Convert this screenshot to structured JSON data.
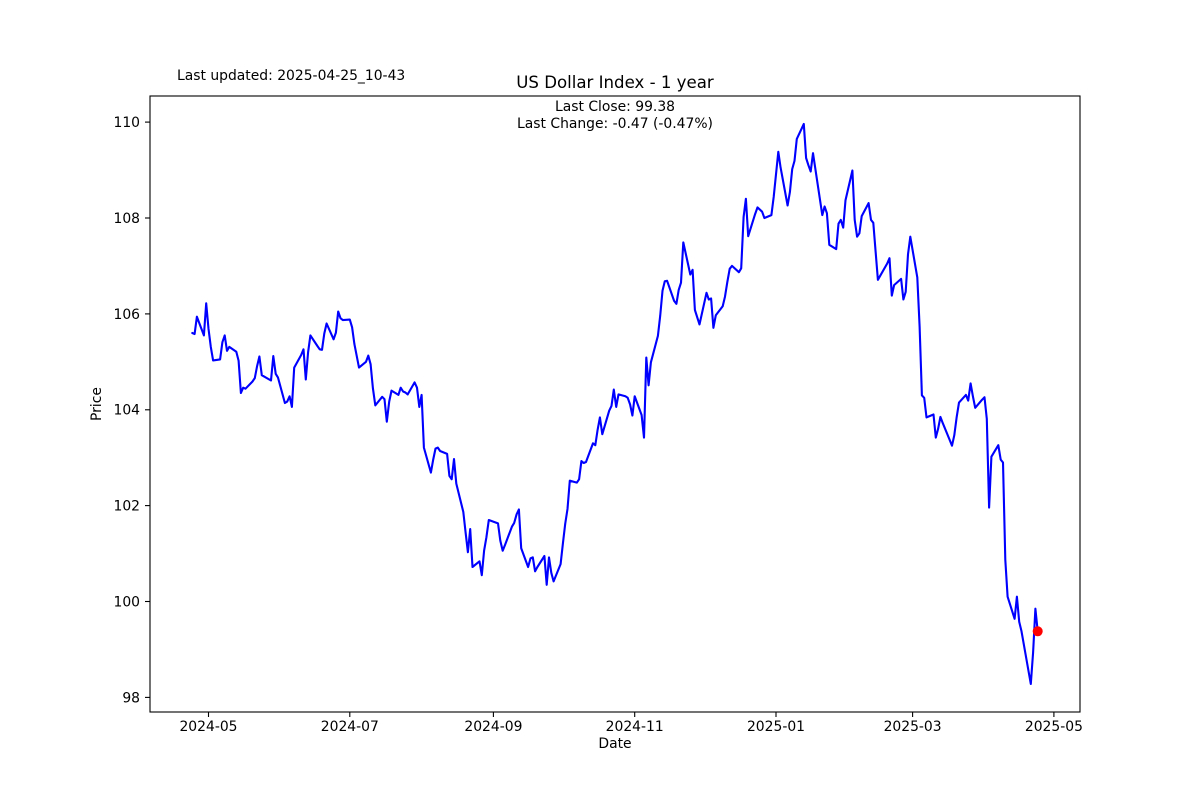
{
  "figure": {
    "last_updated_label": "Last updated: 2025-04-25_10-43",
    "background_color": "#ffffff",
    "text_color": "#000000"
  },
  "chart_data": {
    "type": "line",
    "title": "US Dollar Index - 1 year",
    "annotation": {
      "line1": "Last Close: 99.38",
      "line2": "Last Change: -0.47 (-0.47%)"
    },
    "last_close": 99.38,
    "last_change": -0.47,
    "last_change_pct": "-0.47%",
    "xlabel": "Date",
    "ylabel": "Price",
    "grid": false,
    "legend": false,
    "line_color": "#0000ff",
    "marker_color": "#ff0000",
    "spine_color": "#000000",
    "ylim_ticks": [
      98,
      110
    ],
    "y_ticks": [
      98,
      100,
      102,
      104,
      106,
      108,
      110
    ],
    "x_ticks": [
      {
        "label": "2024-05",
        "date": "2024-05-01"
      },
      {
        "label": "2024-07",
        "date": "2024-07-01"
      },
      {
        "label": "2024-09",
        "date": "2024-09-01"
      },
      {
        "label": "2024-11",
        "date": "2024-11-01"
      },
      {
        "label": "2025-01",
        "date": "2025-01-01"
      },
      {
        "label": "2025-03",
        "date": "2025-03-01"
      },
      {
        "label": "2025-05",
        "date": "2025-05-01"
      }
    ],
    "series": [
      {
        "name": "US Dollar Index",
        "points": [
          [
            "2024-04-24",
            105.6
          ],
          [
            "2024-04-25",
            105.58
          ],
          [
            "2024-04-26",
            105.94
          ],
          [
            "2024-04-29",
            105.55
          ],
          [
            "2024-04-30",
            106.22
          ],
          [
            "2024-05-01",
            105.69
          ],
          [
            "2024-05-02",
            105.31
          ],
          [
            "2024-05-03",
            105.03
          ],
          [
            "2024-05-06",
            105.05
          ],
          [
            "2024-05-07",
            105.41
          ],
          [
            "2024-05-08",
            105.55
          ],
          [
            "2024-05-09",
            105.23
          ],
          [
            "2024-05-10",
            105.31
          ],
          [
            "2024-05-13",
            105.21
          ],
          [
            "2024-05-14",
            105.02
          ],
          [
            "2024-05-15",
            104.35
          ],
          [
            "2024-05-16",
            104.46
          ],
          [
            "2024-05-17",
            104.44
          ],
          [
            "2024-05-20",
            104.59
          ],
          [
            "2024-05-21",
            104.66
          ],
          [
            "2024-05-22",
            104.91
          ],
          [
            "2024-05-23",
            105.11
          ],
          [
            "2024-05-24",
            104.72
          ],
          [
            "2024-05-28",
            104.61
          ],
          [
            "2024-05-29",
            105.12
          ],
          [
            "2024-05-30",
            104.75
          ],
          [
            "2024-05-31",
            104.67
          ],
          [
            "2024-06-03",
            104.14
          ],
          [
            "2024-06-04",
            104.17
          ],
          [
            "2024-06-05",
            104.28
          ],
          [
            "2024-06-06",
            104.06
          ],
          [
            "2024-06-07",
            104.88
          ],
          [
            "2024-06-10",
            105.14
          ],
          [
            "2024-06-11",
            105.26
          ],
          [
            "2024-06-12",
            104.63
          ],
          [
            "2024-06-13",
            105.2
          ],
          [
            "2024-06-14",
            105.55
          ],
          [
            "2024-06-17",
            105.33
          ],
          [
            "2024-06-18",
            105.26
          ],
          [
            "2024-06-19",
            105.25
          ],
          [
            "2024-06-20",
            105.59
          ],
          [
            "2024-06-21",
            105.8
          ],
          [
            "2024-06-24",
            105.47
          ],
          [
            "2024-06-25",
            105.61
          ],
          [
            "2024-06-26",
            106.05
          ],
          [
            "2024-06-27",
            105.91
          ],
          [
            "2024-06-28",
            105.87
          ],
          [
            "2024-07-01",
            105.88
          ],
          [
            "2024-07-02",
            105.72
          ],
          [
            "2024-07-03",
            105.37
          ],
          [
            "2024-07-05",
            104.88
          ],
          [
            "2024-07-08",
            105.0
          ],
          [
            "2024-07-09",
            105.13
          ],
          [
            "2024-07-10",
            104.95
          ],
          [
            "2024-07-11",
            104.45
          ],
          [
            "2024-07-12",
            104.09
          ],
          [
            "2024-07-15",
            104.27
          ],
          [
            "2024-07-16",
            104.22
          ],
          [
            "2024-07-17",
            103.75
          ],
          [
            "2024-07-18",
            104.17
          ],
          [
            "2024-07-19",
            104.4
          ],
          [
            "2024-07-22",
            104.31
          ],
          [
            "2024-07-23",
            104.46
          ],
          [
            "2024-07-24",
            104.38
          ],
          [
            "2024-07-25",
            104.36
          ],
          [
            "2024-07-26",
            104.32
          ],
          [
            "2024-07-29",
            104.57
          ],
          [
            "2024-07-30",
            104.46
          ],
          [
            "2024-07-31",
            104.06
          ],
          [
            "2024-08-01",
            104.31
          ],
          [
            "2024-08-02",
            103.21
          ],
          [
            "2024-08-05",
            102.69
          ],
          [
            "2024-08-06",
            102.96
          ],
          [
            "2024-08-07",
            103.19
          ],
          [
            "2024-08-08",
            103.21
          ],
          [
            "2024-08-09",
            103.14
          ],
          [
            "2024-08-12",
            103.08
          ],
          [
            "2024-08-13",
            102.62
          ],
          [
            "2024-08-14",
            102.55
          ],
          [
            "2024-08-15",
            102.97
          ],
          [
            "2024-08-16",
            102.46
          ],
          [
            "2024-08-19",
            101.87
          ],
          [
            "2024-08-20",
            101.44
          ],
          [
            "2024-08-21",
            101.03
          ],
          [
            "2024-08-22",
            101.51
          ],
          [
            "2024-08-23",
            100.72
          ],
          [
            "2024-08-26",
            100.84
          ],
          [
            "2024-08-27",
            100.55
          ],
          [
            "2024-08-28",
            101.06
          ],
          [
            "2024-08-29",
            101.34
          ],
          [
            "2024-08-30",
            101.7
          ],
          [
            "2024-09-03",
            101.63
          ],
          [
            "2024-09-04",
            101.27
          ],
          [
            "2024-09-05",
            101.06
          ],
          [
            "2024-09-06",
            101.18
          ],
          [
            "2024-09-09",
            101.56
          ],
          [
            "2024-09-10",
            101.64
          ],
          [
            "2024-09-11",
            101.82
          ],
          [
            "2024-09-12",
            101.92
          ],
          [
            "2024-09-13",
            101.11
          ],
          [
            "2024-09-16",
            100.72
          ],
          [
            "2024-09-17",
            100.9
          ],
          [
            "2024-09-18",
            100.92
          ],
          [
            "2024-09-19",
            100.63
          ],
          [
            "2024-09-20",
            100.72
          ],
          [
            "2024-09-23",
            100.95
          ],
          [
            "2024-09-24",
            100.35
          ],
          [
            "2024-09-25",
            100.92
          ],
          [
            "2024-09-26",
            100.6
          ],
          [
            "2024-09-27",
            100.42
          ],
          [
            "2024-09-30",
            100.78
          ],
          [
            "2024-10-01",
            101.21
          ],
          [
            "2024-10-02",
            101.62
          ],
          [
            "2024-10-03",
            101.93
          ],
          [
            "2024-10-04",
            102.52
          ],
          [
            "2024-10-07",
            102.48
          ],
          [
            "2024-10-08",
            102.55
          ],
          [
            "2024-10-09",
            102.93
          ],
          [
            "2024-10-10",
            102.89
          ],
          [
            "2024-10-11",
            102.91
          ],
          [
            "2024-10-14",
            103.3
          ],
          [
            "2024-10-15",
            103.26
          ],
          [
            "2024-10-16",
            103.58
          ],
          [
            "2024-10-17",
            103.84
          ],
          [
            "2024-10-18",
            103.49
          ],
          [
            "2024-10-21",
            103.98
          ],
          [
            "2024-10-22",
            104.08
          ],
          [
            "2024-10-23",
            104.42
          ],
          [
            "2024-10-24",
            104.06
          ],
          [
            "2024-10-25",
            104.32
          ],
          [
            "2024-10-28",
            104.28
          ],
          [
            "2024-10-29",
            104.25
          ],
          [
            "2024-10-30",
            104.11
          ],
          [
            "2024-10-31",
            103.88
          ],
          [
            "2024-11-01",
            104.28
          ],
          [
            "2024-11-04",
            103.89
          ],
          [
            "2024-11-05",
            103.42
          ],
          [
            "2024-11-06",
            105.09
          ],
          [
            "2024-11-07",
            104.51
          ],
          [
            "2024-11-08",
            104.99
          ],
          [
            "2024-11-11",
            105.54
          ],
          [
            "2024-11-12",
            105.96
          ],
          [
            "2024-11-13",
            106.48
          ],
          [
            "2024-11-14",
            106.68
          ],
          [
            "2024-11-15",
            106.69
          ],
          [
            "2024-11-18",
            106.27
          ],
          [
            "2024-11-19",
            106.21
          ],
          [
            "2024-11-20",
            106.5
          ],
          [
            "2024-11-21",
            106.65
          ],
          [
            "2024-11-22",
            107.49
          ],
          [
            "2024-11-25",
            106.82
          ],
          [
            "2024-11-26",
            106.92
          ],
          [
            "2024-11-27",
            106.08
          ],
          [
            "2024-11-29",
            105.78
          ],
          [
            "2024-12-02",
            106.44
          ],
          [
            "2024-12-03",
            106.3
          ],
          [
            "2024-12-04",
            106.32
          ],
          [
            "2024-12-05",
            105.71
          ],
          [
            "2024-12-06",
            105.97
          ],
          [
            "2024-12-09",
            106.16
          ],
          [
            "2024-12-10",
            106.36
          ],
          [
            "2024-12-11",
            106.66
          ],
          [
            "2024-12-12",
            106.94
          ],
          [
            "2024-12-13",
            107.0
          ],
          [
            "2024-12-16",
            106.87
          ],
          [
            "2024-12-17",
            106.95
          ],
          [
            "2024-12-18",
            108.02
          ],
          [
            "2024-12-19",
            108.4
          ],
          [
            "2024-12-20",
            107.62
          ],
          [
            "2024-12-23",
            108.08
          ],
          [
            "2024-12-24",
            108.22
          ],
          [
            "2024-12-26",
            108.13
          ],
          [
            "2024-12-27",
            108.0
          ],
          [
            "2024-12-30",
            108.06
          ],
          [
            "2024-12-31",
            108.44
          ],
          [
            "2025-01-02",
            109.38
          ],
          [
            "2025-01-03",
            109.05
          ],
          [
            "2025-01-06",
            108.26
          ],
          [
            "2025-01-07",
            108.54
          ],
          [
            "2025-01-08",
            109.02
          ],
          [
            "2025-01-09",
            109.19
          ],
          [
            "2025-01-10",
            109.65
          ],
          [
            "2025-01-13",
            109.96
          ],
          [
            "2025-01-14",
            109.25
          ],
          [
            "2025-01-15",
            109.1
          ],
          [
            "2025-01-16",
            108.97
          ],
          [
            "2025-01-17",
            109.35
          ],
          [
            "2025-01-21",
            108.06
          ],
          [
            "2025-01-22",
            108.24
          ],
          [
            "2025-01-23",
            108.1
          ],
          [
            "2025-01-24",
            107.44
          ],
          [
            "2025-01-27",
            107.35
          ],
          [
            "2025-01-28",
            107.88
          ],
          [
            "2025-01-29",
            107.96
          ],
          [
            "2025-01-30",
            107.8
          ],
          [
            "2025-01-31",
            108.37
          ],
          [
            "2025-02-03",
            108.99
          ],
          [
            "2025-02-04",
            107.96
          ],
          [
            "2025-02-05",
            107.61
          ],
          [
            "2025-02-06",
            107.68
          ],
          [
            "2025-02-07",
            108.04
          ],
          [
            "2025-02-10",
            108.31
          ],
          [
            "2025-02-11",
            107.96
          ],
          [
            "2025-02-12",
            107.9
          ],
          [
            "2025-02-13",
            107.3
          ],
          [
            "2025-02-14",
            106.71
          ],
          [
            "2025-02-18",
            107.05
          ],
          [
            "2025-02-19",
            107.16
          ],
          [
            "2025-02-20",
            106.38
          ],
          [
            "2025-02-21",
            106.6
          ],
          [
            "2025-02-24",
            106.73
          ],
          [
            "2025-02-25",
            106.3
          ],
          [
            "2025-02-26",
            106.46
          ],
          [
            "2025-02-27",
            107.24
          ],
          [
            "2025-02-28",
            107.61
          ],
          [
            "2025-03-03",
            106.76
          ],
          [
            "2025-03-04",
            105.74
          ],
          [
            "2025-03-05",
            104.3
          ],
          [
            "2025-03-06",
            104.25
          ],
          [
            "2025-03-07",
            103.84
          ],
          [
            "2025-03-10",
            103.9
          ],
          [
            "2025-03-11",
            103.42
          ],
          [
            "2025-03-12",
            103.6
          ],
          [
            "2025-03-13",
            103.85
          ],
          [
            "2025-03-14",
            103.72
          ],
          [
            "2025-03-17",
            103.37
          ],
          [
            "2025-03-18",
            103.25
          ],
          [
            "2025-03-19",
            103.47
          ],
          [
            "2025-03-20",
            103.85
          ],
          [
            "2025-03-21",
            104.15
          ],
          [
            "2025-03-24",
            104.31
          ],
          [
            "2025-03-25",
            104.19
          ],
          [
            "2025-03-26",
            104.55
          ],
          [
            "2025-03-27",
            104.28
          ],
          [
            "2025-03-28",
            104.04
          ],
          [
            "2025-03-31",
            104.21
          ],
          [
            "2025-04-01",
            104.26
          ],
          [
            "2025-04-02",
            103.81
          ],
          [
            "2025-04-03",
            101.96
          ],
          [
            "2025-04-04",
            103.02
          ],
          [
            "2025-04-07",
            103.26
          ],
          [
            "2025-04-08",
            102.96
          ],
          [
            "2025-04-09",
            102.9
          ],
          [
            "2025-04-10",
            100.87
          ],
          [
            "2025-04-11",
            100.1
          ],
          [
            "2025-04-14",
            99.64
          ],
          [
            "2025-04-15",
            100.1
          ],
          [
            "2025-04-16",
            99.58
          ],
          [
            "2025-04-17",
            99.38
          ],
          [
            "2025-04-21",
            98.28
          ],
          [
            "2025-04-22",
            98.94
          ],
          [
            "2025-04-23",
            99.85
          ],
          [
            "2025-04-24",
            99.38
          ]
        ]
      }
    ]
  }
}
